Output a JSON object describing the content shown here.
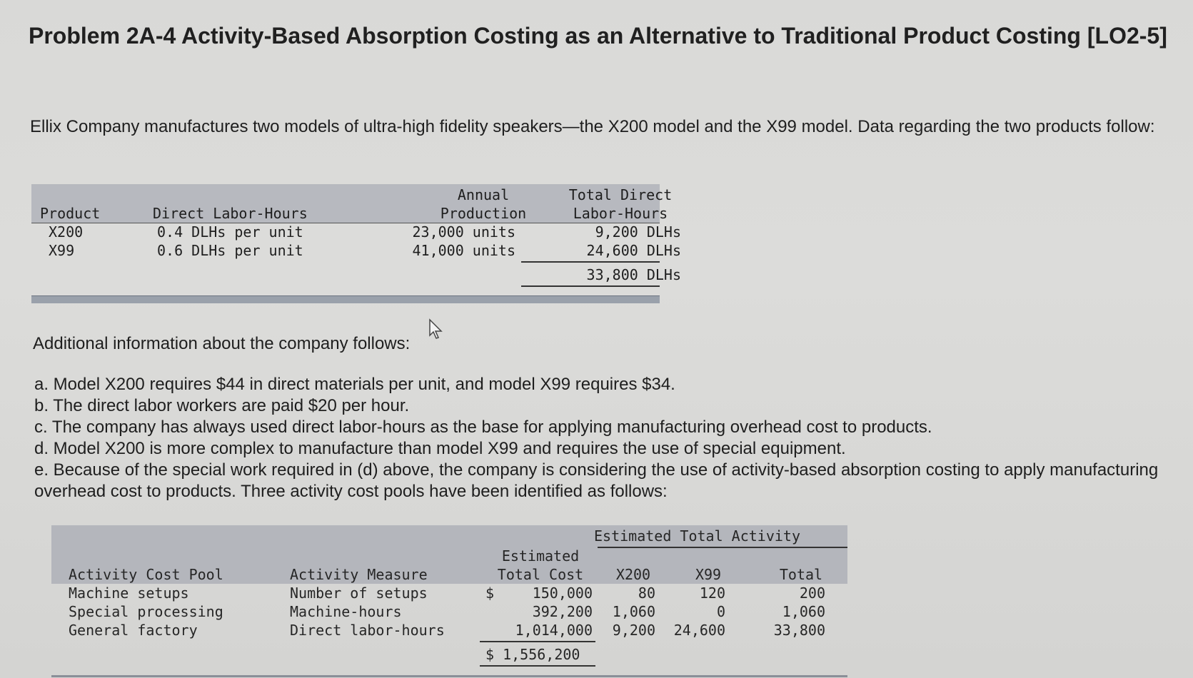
{
  "title": "Problem 2A-4 Activity-Based Absorption Costing as an Alternative to Traditional Product Costing [LO2-5]",
  "intro": "Ellix Company manufactures two models of ultra-high fidelity speakers—the X200 model and the X99 model. Data regarding the two products follow:",
  "table1": {
    "headers": {
      "product": "Product",
      "dlh": "Direct Labor-Hours",
      "annual_line1": "Annual",
      "annual_line2": "Production",
      "total_line1": "Total Direct",
      "total_line2": "Labor-Hours"
    },
    "rows": [
      {
        "product": "X200",
        "dlh": "0.4 DLHs per unit",
        "production": "23,000 units",
        "total": "9,200 DLHs"
      },
      {
        "product": "X99",
        "dlh": "0.6 DLHs per unit",
        "production": "41,000 units",
        "total": "24,600 DLHs"
      }
    ],
    "grand_total": "33,800 DLHs"
  },
  "additional": "Additional information about the company follows:",
  "items": [
    "a. Model X200 requires $44 in direct materials per unit, and model X99 requires $34.",
    "b. The direct labor workers are paid $20 per hour.",
    "c. The company has always used direct labor-hours as the base for applying manufacturing overhead cost to products.",
    "d. Model X200 is more complex to manufacture than model X99 and requires the use of special equipment.",
    "e. Because of the special work required in (d) above, the company is considering the use of activity-based absorption costing to apply manufacturing overhead cost to products. Three activity cost pools have been identified as follows:"
  ],
  "table2": {
    "group_header": "Estimated Total Activity",
    "headers": {
      "pool": "Activity Cost Pool",
      "measure": "Activity Measure",
      "cost_line1": "Estimated",
      "cost_line2": "Total Cost",
      "x200": "X200",
      "x99": "X99",
      "total": "Total"
    },
    "rows": [
      {
        "pool": "Machine setups",
        "measure": "Number of setups",
        "currency": "$",
        "cost": "150,000",
        "x200": "80",
        "x99": "120",
        "total": "200"
      },
      {
        "pool": "Special processing",
        "measure": "Machine-hours",
        "currency": "",
        "cost": "392,200",
        "x200": "1,060",
        "x99": "0",
        "total": "1,060"
      },
      {
        "pool": "General factory",
        "measure": "Direct labor-hours",
        "currency": "",
        "cost": "1,014,000",
        "x200": "9,200",
        "x99": "24,600",
        "total": "33,800"
      }
    ],
    "grand_total": "$ 1,556,200"
  }
}
